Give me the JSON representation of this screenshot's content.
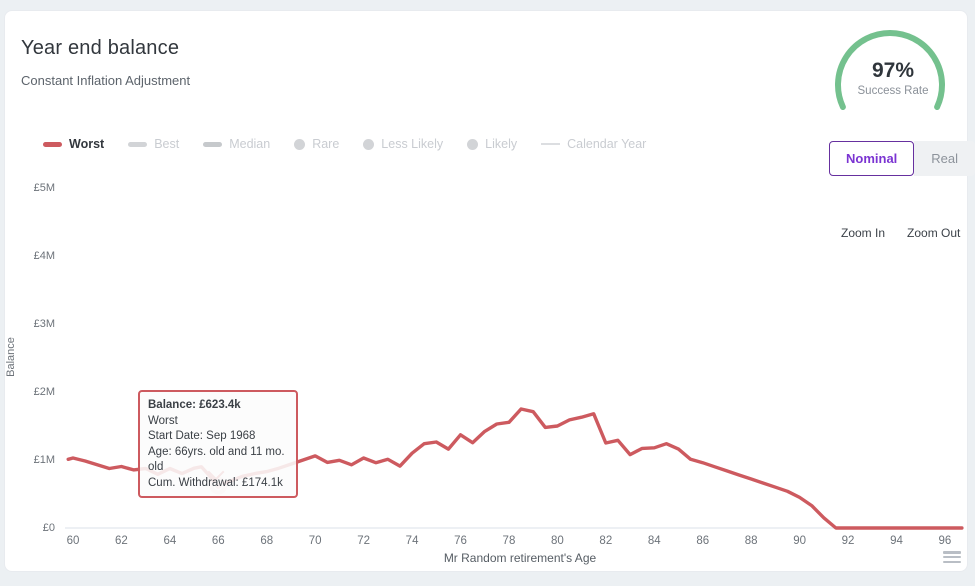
{
  "header": {
    "title": "Year end balance",
    "subtitle": "Constant Inflation Adjustment"
  },
  "gauge": {
    "value": "97%",
    "label": "Success Rate",
    "color": "#74c18e"
  },
  "legend": {
    "items": [
      {
        "label": "Worst",
        "marker": "dash",
        "active": true,
        "color": "#cd5a5f"
      },
      {
        "label": "Best",
        "marker": "dash",
        "active": false,
        "color": "#d2d4d7"
      },
      {
        "label": "Median",
        "marker": "dash",
        "active": false,
        "color": "#c6c9cc"
      },
      {
        "label": "Rare",
        "marker": "dot",
        "active": false,
        "color": "#d2d4d7"
      },
      {
        "label": "Less Likely",
        "marker": "dot",
        "active": false,
        "color": "#d2d4d7"
      },
      {
        "label": "Likely",
        "marker": "dot",
        "active": false,
        "color": "#d2d4d7"
      },
      {
        "label": "Calendar Year",
        "marker": "line",
        "active": false,
        "color": "#dcdee1"
      }
    ],
    "active_text_color": "#33383e",
    "inactive_text_color": "#c9ccd1"
  },
  "toggle": {
    "options": [
      {
        "label": "Nominal",
        "selected": true
      },
      {
        "label": "Real",
        "selected": false
      }
    ],
    "accent": "#7b34d2"
  },
  "zoom_controls": {
    "zoom_in": "Zoom In",
    "zoom_out": "Zoom Out"
  },
  "tooltip": {
    "lines": [
      "Balance: £623.4k",
      "Worst",
      "Start Date: Sep 1968",
      "Age: 66yrs. old and 11 mo. old",
      "Cum. Withdrawal: £174.1k"
    ]
  },
  "chart_data": {
    "type": "line",
    "title": "Year end balance",
    "xlabel": "Mr Random retirement's Age",
    "ylabel": "Balance",
    "x_ticks": [
      60,
      62,
      64,
      66,
      68,
      70,
      72,
      74,
      76,
      78,
      80,
      82,
      84,
      86,
      88,
      90,
      92,
      94,
      96
    ],
    "y_ticks": [
      "£5M",
      "£4M",
      "£3M",
      "£2M",
      "£1M",
      "£0"
    ],
    "y_tick_values_k": [
      5000,
      4000,
      3000,
      2000,
      1000,
      0
    ],
    "xlim": [
      59.7,
      96.8
    ],
    "ylim_k": [
      0,
      5000
    ],
    "grid": false,
    "legend_position": "top-left",
    "series": [
      {
        "name": "Worst",
        "color": "#cd5a5f",
        "points_age_balancek": [
          [
            59.8,
            1010
          ],
          [
            60,
            1030
          ],
          [
            60.5,
            985
          ],
          [
            61,
            930
          ],
          [
            61.5,
            875
          ],
          [
            62,
            905
          ],
          [
            62.5,
            855
          ],
          [
            63,
            875
          ],
          [
            63.5,
            790
          ],
          [
            64,
            875
          ],
          [
            64.5,
            800
          ],
          [
            65,
            880
          ],
          [
            65.3,
            900
          ],
          [
            66,
            623
          ],
          [
            66.5,
            690
          ],
          [
            67,
            760
          ],
          [
            67.5,
            800
          ],
          [
            68,
            830
          ],
          [
            68.5,
            880
          ],
          [
            69,
            940
          ],
          [
            69.5,
            1000
          ],
          [
            70,
            1060
          ],
          [
            70.5,
            965
          ],
          [
            71,
            995
          ],
          [
            71.5,
            930
          ],
          [
            72,
            1030
          ],
          [
            72.5,
            960
          ],
          [
            73,
            1010
          ],
          [
            73.5,
            910
          ],
          [
            74,
            1100
          ],
          [
            74.5,
            1240
          ],
          [
            75,
            1265
          ],
          [
            75.5,
            1160
          ],
          [
            76,
            1370
          ],
          [
            76.5,
            1255
          ],
          [
            77,
            1420
          ],
          [
            77.5,
            1530
          ],
          [
            78,
            1555
          ],
          [
            78.5,
            1750
          ],
          [
            79,
            1710
          ],
          [
            79.5,
            1480
          ],
          [
            80,
            1500
          ],
          [
            80.5,
            1590
          ],
          [
            81,
            1630
          ],
          [
            81.5,
            1680
          ],
          [
            82,
            1250
          ],
          [
            82.5,
            1290
          ],
          [
            83,
            1080
          ],
          [
            83.5,
            1170
          ],
          [
            84,
            1180
          ],
          [
            84.5,
            1240
          ],
          [
            85,
            1160
          ],
          [
            85.5,
            1010
          ],
          [
            86,
            960
          ],
          [
            86.5,
            900
          ],
          [
            87,
            840
          ],
          [
            87.5,
            780
          ],
          [
            88,
            720
          ],
          [
            88.5,
            660
          ],
          [
            89,
            600
          ],
          [
            89.5,
            540
          ],
          [
            90,
            450
          ],
          [
            90.5,
            330
          ],
          [
            91,
            150
          ],
          [
            91.5,
            0
          ],
          [
            92,
            0
          ],
          [
            92.5,
            0
          ],
          [
            93,
            0
          ],
          [
            93.5,
            0
          ],
          [
            94,
            0
          ],
          [
            94.5,
            0
          ],
          [
            95,
            0
          ],
          [
            95.5,
            0
          ],
          [
            96,
            0
          ],
          [
            96.7,
            0
          ]
        ]
      }
    ],
    "highlight_point": {
      "age": 66,
      "balance_k": 623.4,
      "series": "Worst"
    }
  }
}
